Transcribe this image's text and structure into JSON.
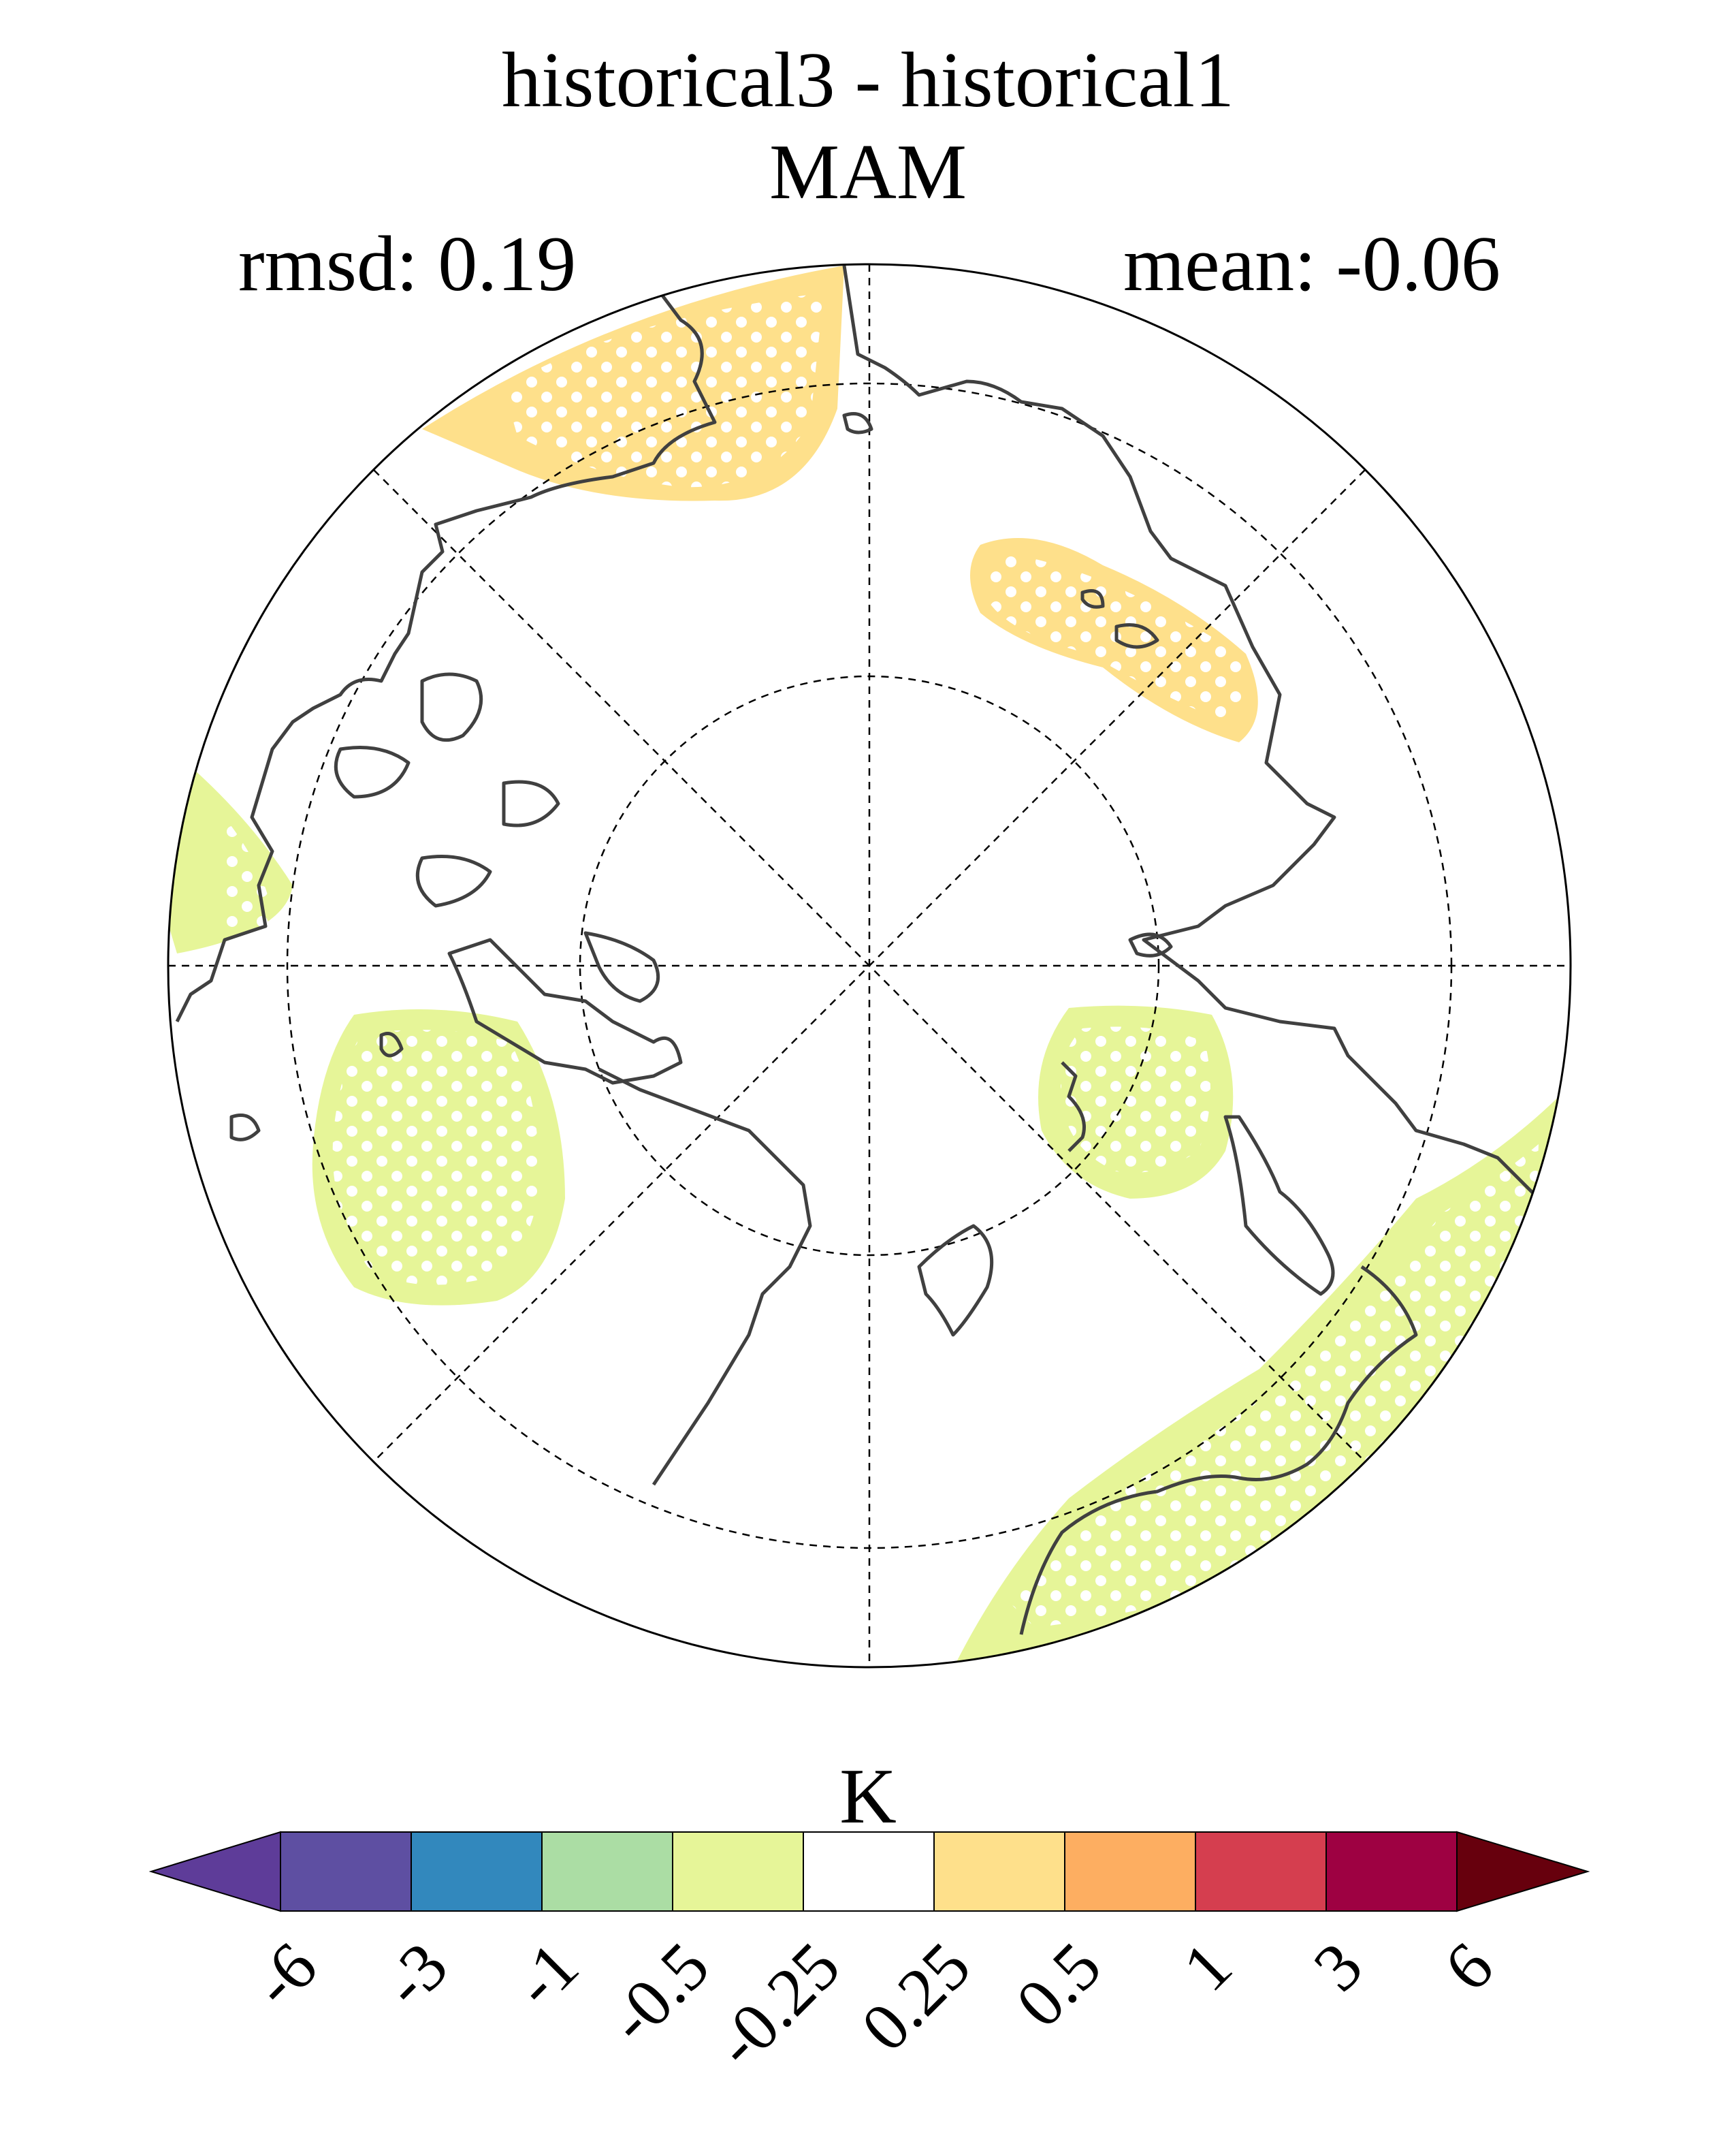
{
  "title": "historical3 - historical1",
  "subtitle": "MAM",
  "stats": {
    "rmsd": "rmsd: 0.19",
    "mean": "mean: -0.06"
  },
  "colorbar": {
    "units": "K",
    "tick_labels": [
      "-6",
      "-3",
      "-1",
      "-0.5",
      "-0.25",
      "0.25",
      "0.5",
      "1",
      "3",
      "6"
    ],
    "colors": [
      "#5e3c99",
      "#5e4fa2",
      "#3288bd",
      "#abdda4",
      "#e6f598",
      "#ffffff",
      "#fee08b",
      "#fdae61",
      "#d53e4f",
      "#9e0142",
      "#67000d"
    ]
  },
  "map": {
    "projection": "north-polar-stereographic",
    "anomaly_colors": {
      "positive": "#fee08b",
      "negative": "#e6f598"
    },
    "stippling": "white dots",
    "coastline_color": "#404040"
  }
}
